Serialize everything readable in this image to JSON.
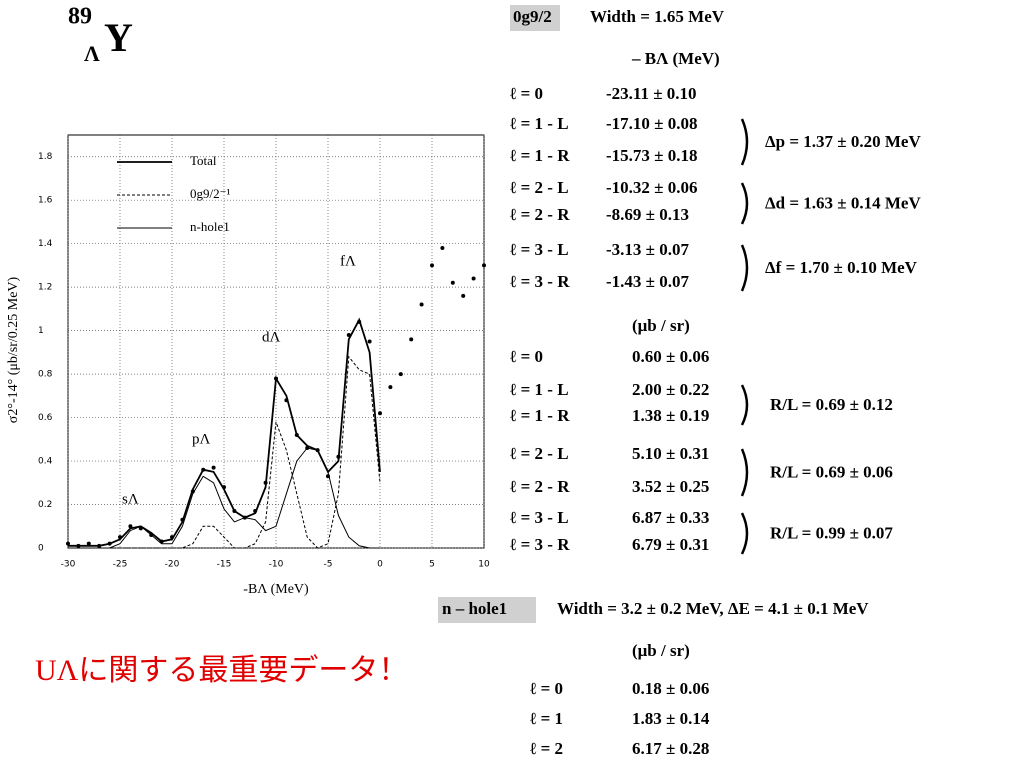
{
  "title": {
    "mass": "89",
    "sub": "Λ",
    "symbol": "Y"
  },
  "chart_data": {
    "type": "line",
    "xlabel": "-BΛ (MeV)",
    "ylabel": "σ2°-14° (μb/sr/0.25 MeV)",
    "x": [
      -30,
      -29,
      -28,
      -27,
      -26,
      -25,
      -24,
      -23,
      -22,
      -21,
      -20,
      -19,
      -18,
      -17,
      -16,
      -15,
      -14,
      -13,
      -12,
      -11,
      -10,
      -9,
      -8,
      -7,
      -6,
      -5,
      -4,
      -3,
      -2,
      -1,
      0,
      1,
      2,
      3,
      4,
      5,
      6,
      7,
      8,
      9,
      10
    ],
    "xlim": [
      -30,
      10
    ],
    "xticks": [
      -30,
      -25,
      -20,
      -15,
      -10,
      -5,
      0,
      5,
      10
    ],
    "ylim": [
      0,
      1.9
    ],
    "yticks": [
      0,
      0.2,
      0.4,
      0.6,
      0.8,
      1,
      1.2,
      1.4,
      1.6,
      1.8
    ],
    "grid": true,
    "legend": "upper left",
    "annotations": [
      "sΛ",
      "pΛ",
      "dΛ",
      "fΛ"
    ],
    "series": [
      {
        "name": "Total",
        "color": "#000000",
        "values": [
          0.01,
          0.01,
          0.01,
          0.01,
          0.02,
          0.04,
          0.09,
          0.1,
          0.07,
          0.03,
          0.04,
          0.12,
          0.27,
          0.36,
          0.35,
          0.27,
          0.17,
          0.14,
          0.16,
          0.28,
          0.78,
          0.7,
          0.52,
          0.47,
          0.45,
          0.35,
          0.4,
          0.96,
          1.05,
          0.9,
          0.35,
          null,
          null,
          null,
          null,
          null,
          null,
          null,
          null,
          null,
          null
        ]
      },
      {
        "name": "0g9/2⁻¹",
        "color": "#000000",
        "dash": true,
        "values": [
          0,
          0,
          0,
          0,
          0,
          0,
          0,
          0,
          0,
          0,
          0,
          0,
          0.02,
          0.1,
          0.1,
          0.05,
          0,
          0,
          0.02,
          0.12,
          0.58,
          0.45,
          0.25,
          0.05,
          0,
          0.02,
          0.25,
          0.88,
          0.82,
          0.8,
          0.3,
          null,
          null,
          null,
          null,
          null,
          null,
          null,
          null,
          null,
          null
        ]
      },
      {
        "name": "n-hole1",
        "color": "#000000",
        "values": [
          0,
          0,
          0,
          0,
          0,
          0.02,
          0.08,
          0.1,
          0.06,
          0.02,
          0.02,
          0.1,
          0.25,
          0.33,
          0.3,
          0.18,
          0.12,
          0.14,
          0.13,
          0.08,
          0.1,
          0.25,
          0.4,
          0.46,
          0.45,
          0.35,
          0.15,
          0.05,
          0.01,
          0,
          0,
          null,
          null,
          null,
          null,
          null,
          null,
          null,
          null,
          null,
          null
        ]
      },
      {
        "type": "scatter",
        "color": "#000000",
        "values": [
          0.02,
          0.01,
          0.02,
          0.01,
          0.02,
          0.05,
          0.1,
          0.09,
          0.06,
          0.03,
          0.05,
          0.13,
          0.26,
          0.36,
          0.37,
          0.28,
          0.17,
          0.14,
          0.17,
          0.3,
          0.78,
          0.68,
          0.52,
          0.46,
          0.45,
          0.33,
          0.42,
          0.98,
          1.04,
          0.95,
          0.62,
          0.74,
          0.8,
          0.96,
          1.12,
          1.3,
          1.38,
          1.22,
          1.16,
          1.24,
          1.3
        ]
      }
    ]
  },
  "table": {
    "g_state": {
      "label": "0g9/2",
      "width": "Width = 1.65 MeV",
      "energy_header": "– BΛ (MeV)",
      "energy_rows": [
        [
          "ℓ = 0",
          "-23.11 ± 0.10"
        ],
        [
          "ℓ = 1 - L",
          "-17.10 ± 0.08"
        ],
        [
          "ℓ = 1 - R",
          "-15.73 ± 0.18"
        ],
        [
          "ℓ = 2 - L",
          "-10.32 ± 0.06"
        ],
        [
          "ℓ = 2 - R",
          "-8.69 ± 0.13"
        ],
        [
          "ℓ = 3 - L",
          "-3.13 ± 0.07"
        ],
        [
          "ℓ = 3 - R",
          "-1.43 ± 0.07"
        ]
      ],
      "splittings": [
        "Δp = 1.37 ± 0.20 MeV",
        "Δd = 1.63 ± 0.14 MeV",
        "Δf = 1.70 ± 0.10 MeV"
      ],
      "xsec_header": "(μb / sr)",
      "xsec_rows": [
        [
          "ℓ = 0",
          "0.60 ± 0.06"
        ],
        [
          "ℓ = 1 - L",
          "2.00 ± 0.22"
        ],
        [
          "ℓ = 1 - R",
          "1.38 ± 0.19"
        ],
        [
          "ℓ = 2 - L",
          "5.10 ± 0.31"
        ],
        [
          "ℓ = 2 - R",
          "3.52 ± 0.25"
        ],
        [
          "ℓ = 3 - L",
          "6.87 ± 0.33"
        ],
        [
          "ℓ = 3 - R",
          "6.79 ± 0.31"
        ]
      ],
      "ratios": [
        "R/L = 0.69 ± 0.12",
        "R/L = 0.69 ± 0.06",
        "R/L = 0.99 ± 0.07"
      ]
    },
    "n_hole": {
      "label": "n – hole1",
      "width": "Width = 3.2 ± 0.2 MeV,  ΔE = 4.1 ± 0.1 MeV",
      "xsec_header": "(μb / sr)",
      "xsec_rows": [
        [
          "ℓ = 0",
          "0.18 ± 0.06"
        ],
        [
          "ℓ = 1",
          "1.83 ± 0.14"
        ],
        [
          "ℓ = 2",
          "6.17 ± 0.28"
        ]
      ]
    }
  },
  "note": "UΛに関する最重要データ！"
}
